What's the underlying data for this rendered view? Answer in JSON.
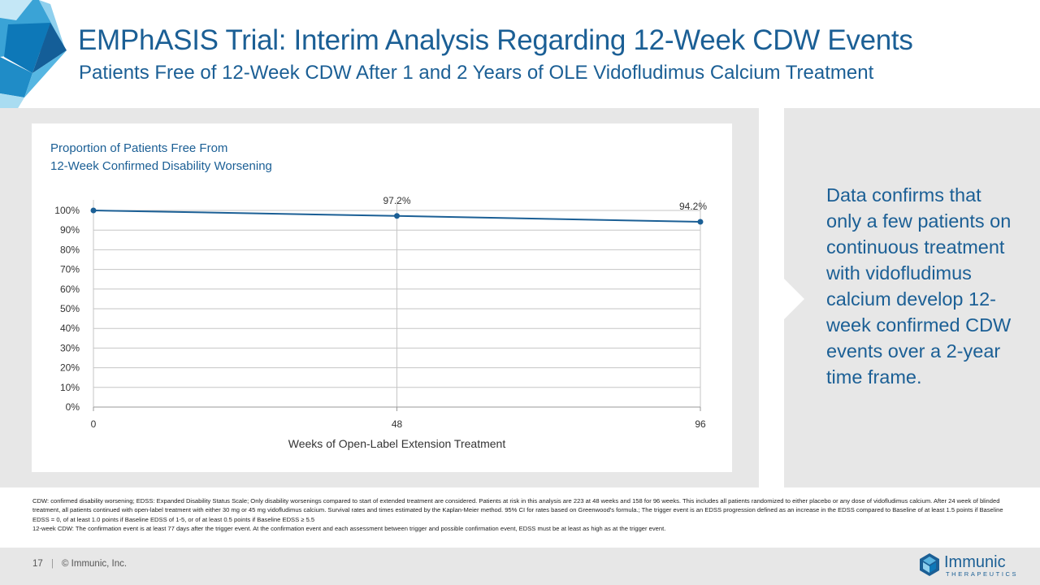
{
  "header": {
    "title": "EMPhASIS Trial: Interim Analysis Regarding 12-Week CDW Events",
    "subtitle": "Patients Free of 12-Week CDW After 1 and 2 Years of OLE Vidofludimus Calcium Treatment"
  },
  "chart_data": {
    "type": "line",
    "title_lines": [
      "Proportion of Patients Free From",
      "12-Week Confirmed Disability Worsening"
    ],
    "x": [
      0,
      48,
      96
    ],
    "x_tick_labels": [
      "0",
      "48",
      "96"
    ],
    "xlabel": "Weeks of Open-Label Extension Treatment",
    "ylabel": "",
    "y_tick_labels": [
      "100%",
      "90%",
      "80%",
      "70%",
      "60%",
      "50%",
      "40%",
      "30%",
      "20%",
      "10%",
      "0%"
    ],
    "ylim": [
      0,
      100
    ],
    "series": [
      {
        "name": "Proportion free of 12-week CDW",
        "values": [
          100,
          97.2,
          94.2
        ],
        "data_labels": [
          "",
          "97.2%",
          "94.2%"
        ]
      }
    ],
    "grid": true,
    "colors": {
      "line": "#1b5f95",
      "grid": "#c6c6c6",
      "axis": "#9a9a9a"
    }
  },
  "callout": {
    "text": "Data confirms that only a few patients on continuous treatment with vidofludimus calcium develop 12-week confirmed CDW events over a 2-year time frame."
  },
  "footnotes": [
    "CDW: confirmed disability worsening; EDSS: Expanded Disability Status Scale; Only disability worsenings compared to start of extended treatment are considered. Patients at risk in this analysis are 223 at 48 weeks and 158 for 96 weeks. This includes all patients randomized to either placebo or any dose of vidofludimus calcium. After 24 week of blinded treatment, all patients continued with open-label treatment with either 30 mg or 45 mg vidofludimus calcium. Survival rates and times estimated by the Kaplan-Meier method. 95% CI for rates based on Greenwood's formula.; The trigger event is an EDSS progression defined as an increase in the EDSS compared to Baseline of at least 1.5 points if Baseline EDSS = 0, of at least 1.0 points if Baseline EDSS of 1-5, or of at least 0.5 points if Baseline EDSS ≥ 5.5",
    "12-week CDW: The confirmation event is at least 77 days after the trigger event. At the confirmation event and each assessment between trigger and possible confirmation event, EDSS must be at least as high as at the trigger event."
  ],
  "footer": {
    "page_number": "17",
    "separator": "|",
    "copyright": "© Immunic, Inc.",
    "logo_name": "Immunic",
    "logo_subtitle": "THERAPEUTICS"
  },
  "theme": {
    "brand": "#1b5f95",
    "band": "#e7e7e7"
  }
}
